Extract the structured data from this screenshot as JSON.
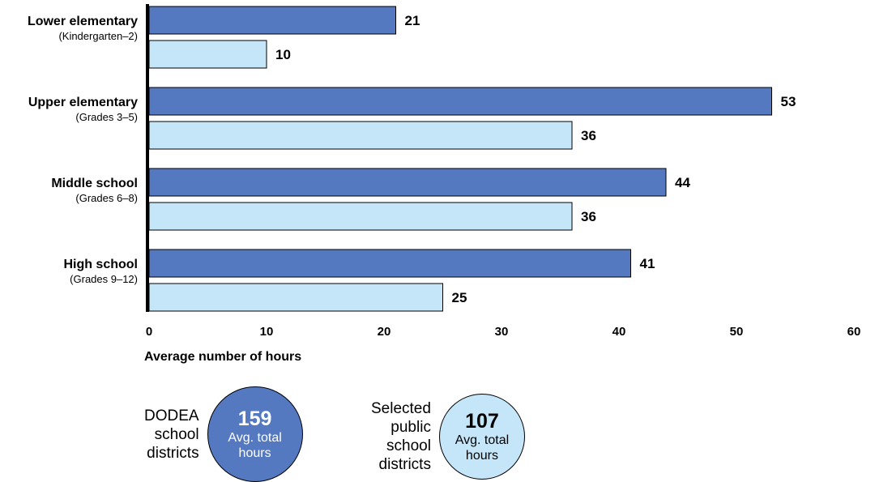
{
  "chart_data": {
    "type": "bar",
    "orientation": "horizontal",
    "categories": [
      {
        "label": "Lower elementary",
        "sublabel": "(Kindergarten–2)"
      },
      {
        "label": "Upper elementary",
        "sublabel": "(Grades 3–5)"
      },
      {
        "label": "Middle school",
        "sublabel": "(Grades 6–8)"
      },
      {
        "label": "High school",
        "sublabel": "(Grades 9–12)"
      }
    ],
    "series": [
      {
        "color": "#5479c0",
        "values": [
          21,
          53,
          44,
          41
        ]
      },
      {
        "color": "#c5e6f8",
        "values": [
          10,
          36,
          36,
          25
        ]
      }
    ],
    "xlabel": "Average number of hours",
    "xlim": [
      0,
      60
    ],
    "xticks": [
      0,
      10,
      20,
      30,
      40,
      50,
      60
    ],
    "grid": false
  },
  "summary": [
    {
      "label": "DODEA\nschool\ndistricts",
      "value": "159",
      "sub": "Avg. total\nhours",
      "color": "#5479c0",
      "text_color": "#ffffff"
    },
    {
      "label": "Selected\npublic\nschool\ndistricts",
      "value": "107",
      "sub": "Avg. total\nhours",
      "color": "#c5e6f8",
      "text_color": "#000000"
    }
  ]
}
